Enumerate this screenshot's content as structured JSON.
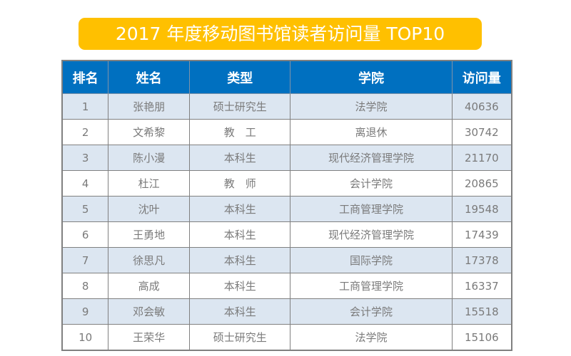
{
  "title": "2017 年度移动图书馆读者访问量 TOP10",
  "columns": [
    "排名",
    "姓名",
    "类型",
    "学院",
    "访问量"
  ],
  "rows": [
    [
      "1",
      "张艳朋",
      "硕士研究生",
      "法学院",
      "40636"
    ],
    [
      "2",
      "文希黎",
      "教　工",
      "离退休",
      "30742"
    ],
    [
      "3",
      "陈小漫",
      "本科生",
      "现代经济管理学院",
      "21170"
    ],
    [
      "4",
      "杜江",
      "教　师",
      "会计学院",
      "20865"
    ],
    [
      "5",
      "沈叶",
      "本科生",
      "工商管理学院",
      "19548"
    ],
    [
      "6",
      "王勇地",
      "本科生",
      "现代经济管理学院",
      "17439"
    ],
    [
      "7",
      "徐思凡",
      "本科生",
      "国际学院",
      "17378"
    ],
    [
      "8",
      "高成",
      "本科生",
      "工商管理学院",
      "16337"
    ],
    [
      "9",
      "邓会敏",
      "本科生",
      "会计学院",
      "15518"
    ],
    [
      "10",
      "王荣华",
      "硕士研究生",
      "法学院",
      "15106"
    ]
  ]
}
